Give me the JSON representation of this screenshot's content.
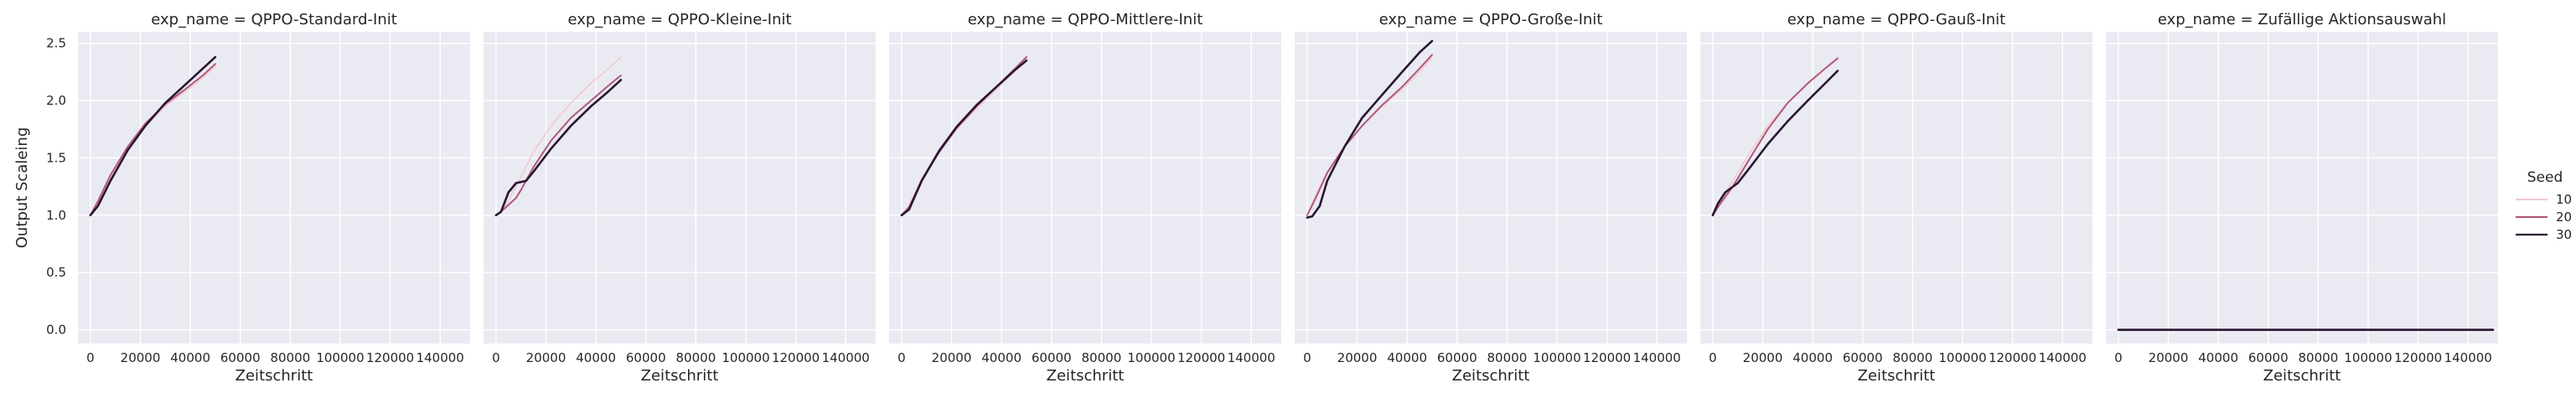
{
  "chart_data": {
    "type": "line",
    "ylabel": "Output Scaleing",
    "xlabel": "Zeitschritt",
    "xlim": [
      -5000,
      152000
    ],
    "ylim": [
      -0.12,
      2.6
    ],
    "xticks": [
      0,
      20000,
      40000,
      60000,
      80000,
      100000,
      120000,
      140000
    ],
    "yticks": [
      0.0,
      0.5,
      1.0,
      1.5,
      2.0,
      2.5
    ],
    "xtick_labels": [
      "0",
      "20000",
      "40000",
      "60000",
      "80000",
      "100000",
      "120000",
      "140000"
    ],
    "ytick_labels": [
      "0.0",
      "0.5",
      "1.0",
      "1.5",
      "2.0",
      "2.5"
    ],
    "grid": true,
    "legend": {
      "title": "Seed",
      "position": "right",
      "entries": [
        {
          "label": "10",
          "color": "#f1c9d0"
        },
        {
          "label": "20",
          "color": "#b0587a"
        },
        {
          "label": "30",
          "color": "#2a1533"
        }
      ]
    },
    "panels": [
      {
        "title": "exp_name = QPPO-Standard-Init",
        "series": [
          {
            "seed": "10",
            "x": [
              0,
              3000,
              8000,
              15000,
              22000,
              30000,
              38000,
              45000,
              50000
            ],
            "y": [
              1.0,
              1.1,
              1.32,
              1.58,
              1.78,
              1.95,
              2.08,
              2.2,
              2.3
            ]
          },
          {
            "seed": "20",
            "x": [
              0,
              3000,
              8000,
              15000,
              22000,
              30000,
              38000,
              45000,
              50000
            ],
            "y": [
              1.0,
              1.12,
              1.35,
              1.6,
              1.8,
              1.97,
              2.1,
              2.22,
              2.32
            ]
          },
          {
            "seed": "30",
            "x": [
              0,
              3000,
              8000,
              15000,
              22000,
              30000,
              38000,
              45000,
              50000
            ],
            "y": [
              1.0,
              1.08,
              1.3,
              1.57,
              1.78,
              1.98,
              2.14,
              2.28,
              2.38
            ]
          }
        ]
      },
      {
        "title": "exp_name = QPPO-Kleine-Init",
        "series": [
          {
            "seed": "10",
            "x": [
              0,
              3000,
              8000,
              15000,
              22000,
              30000,
              38000,
              45000,
              50000
            ],
            "y": [
              1.0,
              1.05,
              1.25,
              1.55,
              1.78,
              1.98,
              2.15,
              2.28,
              2.38
            ]
          },
          {
            "seed": "20",
            "x": [
              0,
              3000,
              8000,
              10000,
              15000,
              22000,
              30000,
              38000,
              45000,
              50000
            ],
            "y": [
              1.0,
              1.05,
              1.15,
              1.22,
              1.42,
              1.65,
              1.85,
              2.0,
              2.13,
              2.22
            ]
          },
          {
            "seed": "30",
            "x": [
              0,
              2000,
              5000,
              8000,
              12000,
              15000,
              22000,
              30000,
              38000,
              45000,
              50000
            ],
            "y": [
              1.0,
              1.03,
              1.2,
              1.28,
              1.3,
              1.38,
              1.58,
              1.78,
              1.95,
              2.08,
              2.18
            ]
          }
        ]
      },
      {
        "title": "exp_name = QPPO-Mittlere-Init",
        "series": [
          {
            "seed": "10",
            "x": [
              0,
              3000,
              8000,
              15000,
              22000,
              30000,
              38000,
              45000,
              50000
            ],
            "y": [
              1.0,
              1.08,
              1.32,
              1.55,
              1.75,
              1.93,
              2.1,
              2.25,
              2.37
            ]
          },
          {
            "seed": "20",
            "x": [
              0,
              3000,
              8000,
              15000,
              22000,
              30000,
              38000,
              45000,
              50000
            ],
            "y": [
              1.0,
              1.07,
              1.3,
              1.55,
              1.76,
              1.95,
              2.12,
              2.27,
              2.38
            ]
          },
          {
            "seed": "30",
            "x": [
              0,
              3000,
              8000,
              15000,
              22000,
              30000,
              38000,
              45000,
              50000
            ],
            "y": [
              1.0,
              1.05,
              1.3,
              1.56,
              1.77,
              1.96,
              2.12,
              2.26,
              2.35
            ]
          }
        ]
      },
      {
        "title": "exp_name = QPPO-Große-Init",
        "series": [
          {
            "seed": "10",
            "x": [
              0,
              3000,
              8000,
              15000,
              22000,
              30000,
              38000,
              45000,
              50000
            ],
            "y": [
              1.0,
              1.15,
              1.38,
              1.6,
              1.78,
              1.95,
              2.1,
              2.25,
              2.38
            ]
          },
          {
            "seed": "20",
            "x": [
              0,
              3000,
              8000,
              15000,
              22000,
              30000,
              38000,
              45000,
              50000
            ],
            "y": [
              1.0,
              1.13,
              1.37,
              1.6,
              1.78,
              1.96,
              2.12,
              2.28,
              2.4
            ]
          },
          {
            "seed": "30",
            "x": [
              0,
              2000,
              5000,
              8000,
              15000,
              22000,
              30000,
              38000,
              45000,
              50000
            ],
            "y": [
              0.98,
              0.99,
              1.08,
              1.3,
              1.6,
              1.85,
              2.05,
              2.25,
              2.42,
              2.52
            ]
          }
        ]
      },
      {
        "title": "exp_name = QPPO-Gauß-Init",
        "series": [
          {
            "seed": "10",
            "x": [
              0,
              3000,
              8000,
              15000,
              22000,
              30000,
              38000,
              45000,
              50000
            ],
            "y": [
              1.0,
              1.12,
              1.3,
              1.55,
              1.78,
              1.98,
              2.15,
              2.28,
              2.36
            ]
          },
          {
            "seed": "20",
            "x": [
              0,
              3000,
              8000,
              15000,
              22000,
              30000,
              38000,
              45000,
              50000
            ],
            "y": [
              1.0,
              1.1,
              1.25,
              1.5,
              1.75,
              1.98,
              2.15,
              2.28,
              2.37
            ]
          },
          {
            "seed": "30",
            "x": [
              0,
              2000,
              5000,
              10000,
              15000,
              22000,
              30000,
              38000,
              45000,
              50000
            ],
            "y": [
              1.0,
              1.1,
              1.2,
              1.28,
              1.42,
              1.62,
              1.82,
              2.0,
              2.15,
              2.26
            ]
          }
        ]
      },
      {
        "title": "exp_name = Zufällige Aktionsauswahl",
        "series": [
          {
            "seed": "10",
            "x": [
              0,
              150000
            ],
            "y": [
              0.0,
              0.0
            ]
          },
          {
            "seed": "20",
            "x": [
              0,
              150000
            ],
            "y": [
              0.0,
              0.0
            ]
          },
          {
            "seed": "30",
            "x": [
              0,
              150000
            ],
            "y": [
              0.0,
              0.0
            ]
          }
        ]
      }
    ]
  }
}
